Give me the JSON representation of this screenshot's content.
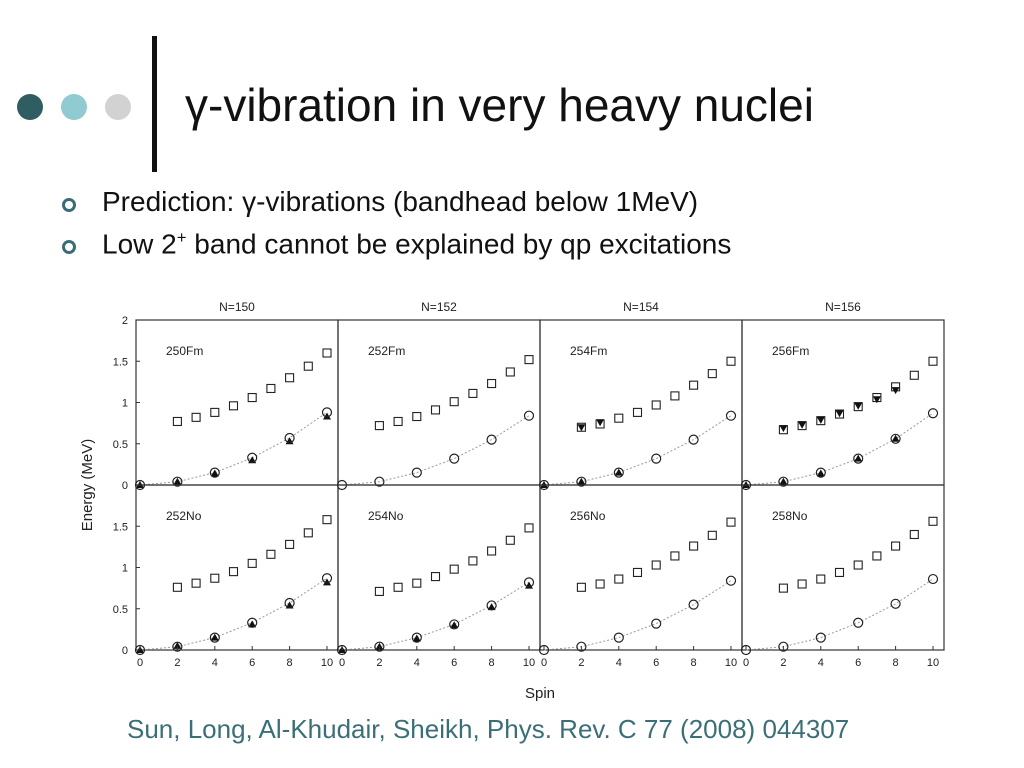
{
  "slide": {
    "title": "γ-vibration in very heavy nuclei",
    "dots": [
      {
        "name": "dot-dark",
        "color": "#2f5d62"
      },
      {
        "name": "dot-teal",
        "color": "#8fcbd1"
      },
      {
        "name": "dot-gray",
        "color": "#d2d2d2"
      }
    ],
    "bullets": [
      {
        "html": "Prediction: γ-vibrations (bandhead below 1MeV)"
      },
      {
        "html": "Low 2<sup>+</sup> band cannot be explained by qp excitations"
      }
    ],
    "citation": "Sun, Long, Al-Khudair, Sheikh, Phys. Rev. C 77 (2008) 044307"
  },
  "chart_data": {
    "type": "scatter",
    "xlabel": "Spin",
    "ylabel": "Energy (MeV)",
    "xlim": [
      0,
      10
    ],
    "ylim": [
      0,
      2
    ],
    "xticks": [
      "0",
      "2",
      "4",
      "6",
      "8",
      "10"
    ],
    "yticks_top": [
      "0",
      "0.5",
      "1",
      "1.5",
      "2"
    ],
    "yticks_bottom": [
      "0",
      "0.5",
      "1",
      "1.5"
    ],
    "column_titles": [
      "N=150",
      "N=152",
      "N=154",
      "N=156"
    ],
    "panels": [
      {
        "label": "250Fm",
        "gamma_x": [
          2,
          3,
          4,
          5,
          6,
          7,
          8,
          9,
          10
        ],
        "gamma_y": [
          0.77,
          0.82,
          0.88,
          0.96,
          1.06,
          1.17,
          1.3,
          1.44,
          1.6
        ],
        "gamma_exp_x": [],
        "gamma_exp_y": [],
        "ground_x": [
          0,
          2,
          4,
          6,
          8,
          10
        ],
        "ground_y": [
          0.0,
          0.04,
          0.15,
          0.33,
          0.57,
          0.88
        ],
        "ground_exp_x": [
          0,
          2,
          4,
          6,
          8,
          10
        ],
        "ground_exp_y": [
          0.0,
          0.04,
          0.14,
          0.3,
          0.53,
          0.83
        ]
      },
      {
        "label": "252Fm",
        "gamma_x": [
          2,
          3,
          4,
          5,
          6,
          7,
          8,
          9,
          10
        ],
        "gamma_y": [
          0.72,
          0.77,
          0.83,
          0.91,
          1.01,
          1.11,
          1.23,
          1.37,
          1.52
        ],
        "gamma_exp_x": [],
        "gamma_exp_y": [],
        "ground_x": [
          0,
          2,
          4,
          6,
          8,
          10
        ],
        "ground_y": [
          0.0,
          0.04,
          0.15,
          0.32,
          0.55,
          0.84
        ],
        "ground_exp_x": [],
        "ground_exp_y": []
      },
      {
        "label": "254Fm",
        "gamma_x": [
          2,
          3,
          4,
          5,
          6,
          7,
          8,
          9,
          10
        ],
        "gamma_y": [
          0.7,
          0.74,
          0.81,
          0.88,
          0.97,
          1.08,
          1.21,
          1.35,
          1.5
        ],
        "gamma_exp_x": [
          2,
          3
        ],
        "gamma_exp_y": [
          0.7,
          0.76
        ],
        "ground_x": [
          0,
          2,
          4,
          6,
          8,
          10
        ],
        "ground_y": [
          0.0,
          0.04,
          0.15,
          0.32,
          0.55,
          0.84
        ],
        "ground_exp_x": [
          0,
          2,
          4
        ],
        "ground_exp_y": [
          0.0,
          0.04,
          0.15
        ]
      },
      {
        "label": "256Fm",
        "gamma_x": [
          2,
          3,
          4,
          5,
          6,
          7,
          8,
          9,
          10
        ],
        "gamma_y": [
          0.67,
          0.72,
          0.78,
          0.86,
          0.95,
          1.06,
          1.19,
          1.33,
          1.5
        ],
        "gamma_exp_x": [
          2,
          3,
          4,
          5,
          6,
          7,
          8
        ],
        "gamma_exp_y": [
          0.69,
          0.73,
          0.79,
          0.87,
          0.96,
          1.04,
          1.15
        ],
        "ground_x": [
          0,
          2,
          4,
          6,
          8,
          10
        ],
        "ground_y": [
          0.0,
          0.04,
          0.15,
          0.32,
          0.56,
          0.87
        ],
        "ground_exp_x": [
          0,
          2,
          4,
          6,
          8
        ],
        "ground_exp_y": [
          0.0,
          0.04,
          0.14,
          0.32,
          0.56
        ]
      },
      {
        "label": "252No",
        "gamma_x": [
          2,
          3,
          4,
          5,
          6,
          7,
          8,
          9,
          10
        ],
        "gamma_y": [
          0.76,
          0.81,
          0.87,
          0.95,
          1.05,
          1.16,
          1.28,
          1.42,
          1.58
        ],
        "gamma_exp_x": [],
        "gamma_exp_y": [],
        "ground_x": [
          0,
          2,
          4,
          6,
          8,
          10
        ],
        "ground_y": [
          0.0,
          0.04,
          0.15,
          0.33,
          0.57,
          0.87
        ],
        "ground_exp_x": [
          0,
          2,
          4,
          6,
          8,
          10
        ],
        "ground_exp_y": [
          0.0,
          0.05,
          0.15,
          0.31,
          0.54,
          0.82
        ]
      },
      {
        "label": "254No",
        "gamma_x": [
          2,
          3,
          4,
          5,
          6,
          7,
          8,
          9,
          10
        ],
        "gamma_y": [
          0.71,
          0.76,
          0.81,
          0.89,
          0.98,
          1.08,
          1.2,
          1.33,
          1.48
        ],
        "gamma_exp_x": [],
        "gamma_exp_y": [],
        "ground_x": [
          0,
          2,
          4,
          6,
          8,
          10
        ],
        "ground_y": [
          0.0,
          0.04,
          0.15,
          0.31,
          0.54,
          0.82
        ],
        "ground_exp_x": [
          0,
          2,
          4,
          6,
          8,
          10
        ],
        "ground_exp_y": [
          0.0,
          0.04,
          0.14,
          0.3,
          0.52,
          0.78
        ]
      },
      {
        "label": "256No",
        "gamma_x": [
          2,
          3,
          4,
          5,
          6,
          7,
          8,
          9,
          10
        ],
        "gamma_y": [
          0.76,
          0.8,
          0.86,
          0.94,
          1.03,
          1.14,
          1.26,
          1.39,
          1.55
        ],
        "gamma_exp_x": [],
        "gamma_exp_y": [],
        "ground_x": [
          0,
          2,
          4,
          6,
          8,
          10
        ],
        "ground_y": [
          0.0,
          0.04,
          0.15,
          0.32,
          0.55,
          0.84
        ],
        "ground_exp_x": [],
        "ground_exp_y": []
      },
      {
        "label": "258No",
        "gamma_x": [
          2,
          3,
          4,
          5,
          6,
          7,
          8,
          9,
          10
        ],
        "gamma_y": [
          0.75,
          0.8,
          0.86,
          0.94,
          1.03,
          1.14,
          1.26,
          1.4,
          1.56
        ],
        "gamma_exp_x": [],
        "gamma_exp_y": [],
        "ground_x": [
          0,
          2,
          4,
          6,
          8,
          10
        ],
        "ground_y": [
          0.0,
          0.04,
          0.15,
          0.33,
          0.56,
          0.86
        ],
        "ground_exp_x": [],
        "ground_exp_y": []
      }
    ]
  }
}
